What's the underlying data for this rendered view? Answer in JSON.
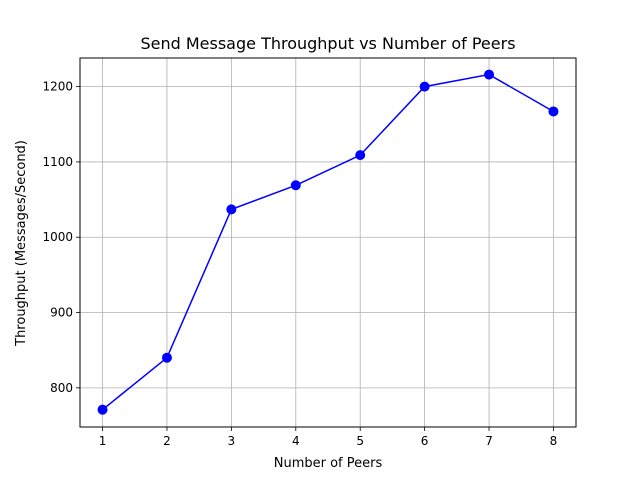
{
  "chart_data": {
    "type": "line",
    "title": "Send Message Throughput vs Number of Peers",
    "xlabel": "Number of Peers",
    "ylabel": "Throughput (Messages/Second)",
    "x": [
      1,
      2,
      3,
      4,
      5,
      6,
      7,
      8
    ],
    "series": [
      {
        "values": [
          771,
          840,
          1037,
          1069,
          1109,
          1200,
          1216,
          1167
        ]
      }
    ],
    "xlim": [
      0.65,
      8.35
    ],
    "ylim": [
      748,
      1238
    ],
    "xticks": [
      "1",
      "2",
      "3",
      "4",
      "5",
      "6",
      "7",
      "8"
    ],
    "yticks": [
      800,
      900,
      1000,
      1100,
      1200
    ],
    "grid": true,
    "marker": "circle",
    "colors": {
      "line": "#0000ff",
      "grid": "#b0b0b0",
      "axes": "#000000"
    }
  }
}
